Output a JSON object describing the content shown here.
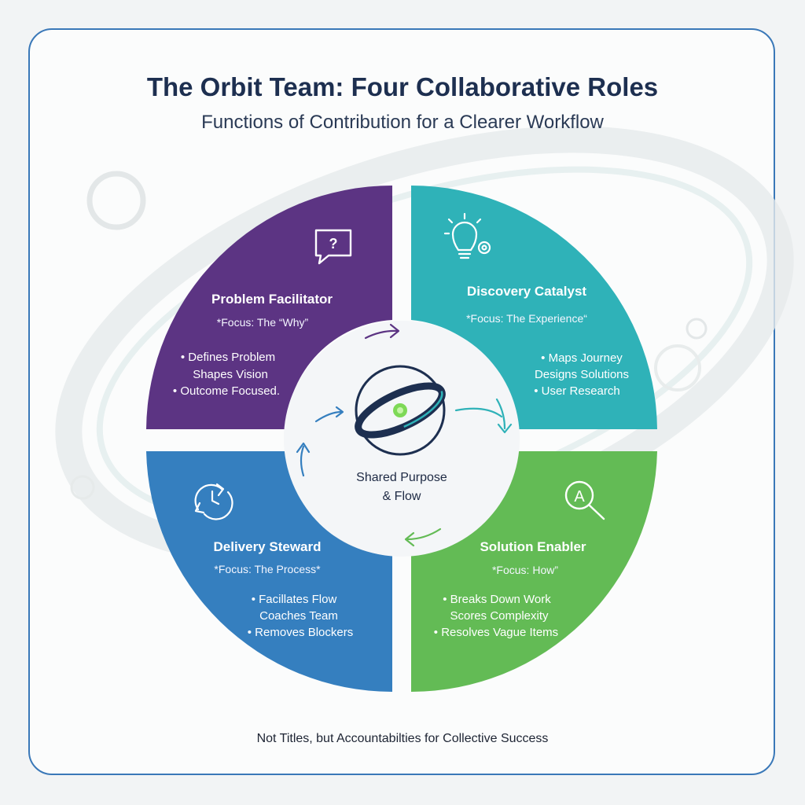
{
  "header": {
    "title": "The Orbit Team: Four Collaborative Roles",
    "subtitle": "Functions of Contribution for a Clearer Workflow"
  },
  "center": {
    "line1": "Shared Purpose",
    "line2": "& Flow"
  },
  "roles": [
    {
      "title": "Problem Facilitator",
      "focus": "*Focus: The “Why”",
      "bullets": [
        "• Defines Problem",
        "Shapes Vision",
        "• Outcome Focused."
      ],
      "icon": "question-bubble-icon",
      "color": "#5c3483"
    },
    {
      "title": "Discovery Catalyst",
      "focus": "*Focus: The Experience“",
      "bullets": [
        "• Maps Journey",
        "Designs Solutions",
        "• User Research"
      ],
      "icon": "lightbulb-gear-icon",
      "color": "#2fb2b8"
    },
    {
      "title": "Delivery Steward",
      "focus": "*Focus: The Process*",
      "bullets": [
        "• Facillates Flow",
        "Coaches Team",
        "• Removes Blockers"
      ],
      "icon": "clock-cycle-icon",
      "color": "#357fbf"
    },
    {
      "title": "Solution Enabler",
      "focus": "*Focus: How”",
      "bullets": [
        "• Breaks Down Work",
        "Scores Complexity",
        "• Resolves Vague Items"
      ],
      "icon": "magnify-letter-icon",
      "color": "#63bb55"
    }
  ],
  "footer": "Not Titles, but Accountabilties for Collective Success"
}
